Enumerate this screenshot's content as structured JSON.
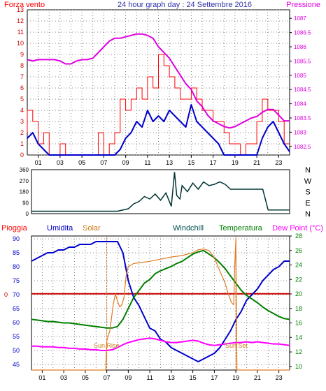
{
  "header": {
    "left_label": "Forza vento",
    "title": "24 hour graph day : 24 Settembre 2016",
    "right_label": "Pressione"
  },
  "colors": {
    "wind_force": "#ff0000",
    "wind_speed": "#0000cc",
    "pressure": "#e000e0",
    "direction": "#003333",
    "rain": "#cc0000",
    "humidity": "#0000cc",
    "solar": "#e07a20",
    "windchill": "#003333",
    "temperature": "#008000",
    "dew_point": "#ff00ff",
    "grid": "#606060"
  },
  "legend_bottom": {
    "rain": "Pioggia",
    "humidity": "Umidita",
    "solar": "Solar",
    "windchill": "Windchill",
    "temperature": "Temperatura",
    "dew_point": "Dew Point (°C)"
  },
  "annotations": {
    "sunrise": "Sun Rise",
    "sunset": "Sun Set"
  },
  "chart_data": [
    {
      "type": "line",
      "name": "wind-pressure",
      "x_ticks": [
        "01",
        "03",
        "05",
        "07",
        "09",
        "11",
        "13",
        "15",
        "17",
        "19",
        "21",
        "23"
      ],
      "ylim_left": [
        0,
        13
      ],
      "y_ticks_left": [
        0,
        1,
        2,
        3,
        4,
        5,
        6,
        7,
        8,
        9,
        10,
        11,
        12,
        13
      ],
      "ylim_right": [
        1082.2,
        1087.3
      ],
      "y_ticks_right": [
        1082.5,
        1083,
        1083.5,
        1084,
        1084.5,
        1085,
        1085.5,
        1086,
        1086.5,
        1087
      ],
      "grid": true,
      "series": [
        {
          "key": "wind_force",
          "axis": "left",
          "x": [
            0,
            0.5,
            1,
            1.5,
            2,
            2.5,
            3,
            3.5,
            4,
            4.5,
            5,
            5.5,
            6,
            6.5,
            7,
            7.5,
            8,
            8.5,
            9,
            9.5,
            10,
            10.5,
            11,
            11.5,
            12,
            12.5,
            13,
            13.5,
            14,
            14.5,
            15,
            15.5,
            16,
            16.5,
            17,
            17.5,
            18,
            18.5,
            19,
            19.5,
            20,
            20.5,
            21,
            21.5,
            22,
            22.5,
            23,
            23.5,
            24
          ],
          "values": [
            2,
            4,
            3,
            1,
            2,
            0,
            0,
            1,
            0,
            0,
            0,
            0,
            0,
            0,
            2,
            0,
            1,
            2,
            5,
            4,
            5,
            6,
            5,
            7,
            6,
            9,
            8,
            7,
            6,
            5,
            5,
            6,
            5,
            4,
            4,
            3,
            3,
            2,
            1,
            1,
            0,
            1,
            1,
            3,
            5,
            4,
            4,
            3,
            1
          ]
        },
        {
          "key": "wind_speed",
          "axis": "left",
          "x": [
            0,
            0.5,
            1,
            1.5,
            2,
            2.5,
            3,
            3.5,
            4,
            4.5,
            5,
            5.5,
            6,
            6.5,
            7,
            7.5,
            8,
            8.5,
            9,
            9.5,
            10,
            10.5,
            11,
            11.5,
            12,
            12.5,
            13,
            13.5,
            14,
            14.5,
            15,
            15.5,
            16,
            16.5,
            17,
            17.5,
            18,
            18.5,
            19,
            19.5,
            20,
            20.5,
            21,
            21.5,
            22,
            22.5,
            23,
            23.5,
            24
          ],
          "values": [
            1.5,
            2,
            1,
            0.5,
            0,
            0,
            0,
            0,
            0,
            0,
            0,
            0,
            0,
            0,
            0,
            0,
            0,
            0.5,
            1.5,
            2,
            3,
            2.5,
            4,
            3,
            3.5,
            3,
            4,
            3.5,
            3,
            2.5,
            4.5,
            3,
            2.5,
            2,
            1.5,
            1,
            0,
            0,
            0,
            0,
            0,
            0,
            0,
            1.5,
            2.5,
            3,
            2,
            1,
            0.3
          ]
        },
        {
          "key": "pressure",
          "axis": "right",
          "x": [
            0,
            0.5,
            1,
            1.5,
            2,
            2.5,
            3,
            3.5,
            4,
            4.5,
            5,
            5.5,
            6,
            6.5,
            7,
            7.5,
            8,
            8.5,
            9,
            9.5,
            10,
            10.5,
            11,
            11.5,
            12,
            12.5,
            13,
            13.5,
            14,
            14.5,
            15,
            15.5,
            16,
            16.5,
            17,
            17.5,
            18,
            18.5,
            19,
            19.5,
            20,
            20.5,
            21,
            21.5,
            22,
            22.5,
            23,
            23.5,
            24
          ],
          "values": [
            1085.55,
            1085.5,
            1085.55,
            1085.55,
            1085.55,
            1085.55,
            1085.5,
            1085.4,
            1085.4,
            1085.5,
            1085.55,
            1085.55,
            1085.6,
            1085.8,
            1086.0,
            1086.2,
            1086.3,
            1086.3,
            1086.35,
            1086.4,
            1086.45,
            1086.45,
            1086.4,
            1086.3,
            1086.0,
            1085.8,
            1085.6,
            1085.3,
            1085.0,
            1084.7,
            1084.5,
            1084.1,
            1083.9,
            1083.6,
            1083.4,
            1083.3,
            1083.2,
            1083.15,
            1083.2,
            1083.3,
            1083.4,
            1083.5,
            1083.55,
            1083.7,
            1083.8,
            1083.8,
            1083.6,
            1083.4,
            1083.4
          ]
        }
      ]
    },
    {
      "type": "line",
      "name": "wind-direction",
      "left_ticks": [
        "360",
        "270",
        "180",
        "90",
        "0"
      ],
      "right_labels": [
        "N",
        "W",
        "S",
        "E",
        "N"
      ],
      "ylim": [
        0,
        360
      ],
      "grid": false,
      "series": [
        {
          "key": "direction",
          "x": [
            0,
            1,
            2,
            3,
            4,
            5,
            6,
            7,
            8,
            9,
            9.5,
            10,
            10.5,
            11,
            11.5,
            12,
            12.5,
            13,
            13.3,
            13.5,
            13.8,
            14,
            14.5,
            15,
            15.5,
            16,
            16.5,
            17,
            17.5,
            18,
            18.5,
            19,
            20,
            21,
            21.5,
            22,
            23,
            24
          ],
          "values": [
            20,
            20,
            20,
            20,
            20,
            20,
            20,
            20,
            20,
            40,
            80,
            100,
            140,
            120,
            160,
            110,
            170,
            60,
            340,
            150,
            120,
            230,
            180,
            250,
            200,
            260,
            230,
            240,
            260,
            240,
            200,
            200,
            200,
            200,
            200,
            30,
            30,
            30
          ]
        }
      ]
    },
    {
      "type": "line",
      "name": "temp-humidity",
      "x_ticks": [
        "01",
        "03",
        "05",
        "07",
        "09",
        "11",
        "13",
        "15",
        "17",
        "19",
        "21",
        "23"
      ],
      "ylim_left": [
        43,
        91
      ],
      "y_ticks_left": [
        45,
        50,
        55,
        60,
        65,
        70,
        75,
        80,
        85,
        90
      ],
      "ylim_right": [
        9.5,
        28
      ],
      "y_ticks_right": [
        10,
        12,
        14,
        16,
        18,
        20,
        22,
        24,
        26,
        28
      ],
      "rain_label": "0",
      "sunrise_hour": 7.0,
      "sunset_hour": 19.0,
      "grid": true,
      "series": [
        {
          "key": "humidity",
          "axis": "left",
          "x": [
            0,
            0.5,
            1,
            1.5,
            2,
            2.5,
            3,
            3.5,
            4,
            4.5,
            5,
            5.5,
            6,
            6.5,
            7,
            7.5,
            8,
            8.5,
            9,
            9.5,
            10,
            10.5,
            11,
            11.5,
            12,
            12.5,
            13,
            13.5,
            14,
            14.5,
            15,
            15.5,
            16,
            16.5,
            17,
            17.5,
            18,
            18.5,
            19,
            19.5,
            20,
            20.5,
            21,
            21.5,
            22,
            22.5,
            23,
            23.5,
            24
          ],
          "values": [
            82,
            83,
            84,
            85,
            85,
            86,
            86,
            87,
            87,
            88,
            88,
            88,
            89,
            89,
            89,
            89,
            89,
            85,
            75,
            69,
            66,
            62,
            58,
            57,
            54,
            53,
            51,
            50,
            49,
            48,
            47,
            46,
            47,
            48,
            49,
            51,
            54,
            57,
            61,
            64,
            68,
            70,
            72,
            75,
            77,
            79,
            80,
            82,
            82
          ]
        },
        {
          "key": "temperature",
          "axis": "right",
          "x": [
            0,
            0.5,
            1,
            1.5,
            2,
            2.5,
            3,
            3.5,
            4,
            4.5,
            5,
            5.5,
            6,
            6.5,
            7,
            7.5,
            8,
            8.5,
            9,
            9.5,
            10,
            10.5,
            11,
            11.5,
            12,
            12.5,
            13,
            13.5,
            14,
            14.5,
            15,
            15.5,
            16,
            16.5,
            17,
            17.5,
            18,
            18.5,
            19,
            19.5,
            20,
            20.5,
            21,
            21.5,
            22,
            22.5,
            23,
            23.5,
            24
          ],
          "values": [
            16.5,
            16.4,
            16.3,
            16.2,
            16.2,
            16.1,
            16.0,
            16.0,
            15.9,
            15.8,
            15.7,
            15.6,
            15.5,
            15.4,
            15.3,
            15.3,
            15.5,
            16.5,
            18.0,
            19.5,
            20.5,
            21.5,
            22.0,
            22.8,
            23.2,
            23.5,
            23.8,
            24.2,
            24.5,
            25.0,
            25.5,
            25.8,
            26.0,
            25.5,
            25.0,
            24.3,
            23.5,
            22.5,
            21.5,
            20.5,
            19.8,
            19.3,
            18.8,
            18.2,
            17.7,
            17.3,
            16.9,
            16.6,
            16.5
          ]
        },
        {
          "key": "dew_point",
          "axis": "right",
          "x": [
            0,
            0.5,
            1,
            1.5,
            2,
            2.5,
            3,
            3.5,
            4,
            4.5,
            5,
            5.5,
            6,
            6.5,
            7,
            7.5,
            8,
            8.5,
            9,
            9.5,
            10,
            10.5,
            11,
            11.5,
            12,
            12.5,
            13,
            13.5,
            14,
            14.5,
            15,
            15.5,
            16,
            16.5,
            17,
            17.5,
            18,
            18.5,
            19,
            19.5,
            20,
            20.5,
            21,
            21.5,
            22,
            22.5,
            23,
            23.5,
            24
          ],
          "values": [
            12.8,
            12.8,
            12.7,
            12.7,
            12.7,
            12.6,
            12.6,
            12.5,
            12.5,
            12.4,
            12.4,
            12.3,
            12.3,
            12.2,
            12.2,
            12.3,
            12.6,
            13.0,
            13.3,
            13.5,
            13.7,
            13.8,
            13.9,
            13.8,
            13.6,
            13.4,
            13.3,
            13.3,
            13.4,
            13.5,
            13.6,
            13.5,
            13.2,
            13.0,
            12.9,
            13.0,
            13.1,
            13.2,
            13.3,
            13.3,
            13.4,
            13.3,
            13.4,
            13.3,
            13.2,
            13.1,
            13.1,
            13.0,
            12.9
          ]
        },
        {
          "key": "solar",
          "axis": "right",
          "x": [
            0,
            1,
            2,
            3,
            4,
            5,
            6,
            6.9,
            7.0,
            7.3,
            7.6,
            7.8,
            8.0,
            8.2,
            8.4,
            8.6,
            8.8,
            9.0,
            9.5,
            10,
            11,
            12,
            13,
            14,
            15,
            15.5,
            16,
            16.5,
            17,
            17.5,
            18,
            18.3,
            18.6,
            18.8,
            18.9,
            19.0,
            19.1,
            20,
            21,
            22,
            23,
            24
          ],
          "values": [
            9.5,
            9.5,
            9.5,
            9.5,
            9.5,
            9.5,
            9.5,
            9.5,
            13.5,
            15.0,
            18.5,
            20.0,
            19.0,
            18.2,
            18.5,
            19.5,
            22.5,
            23.8,
            24.2,
            24.3,
            24.5,
            24.8,
            25.1,
            25.3,
            25.7,
            26.1,
            26.2,
            26.0,
            25.0,
            23.2,
            21.5,
            20.0,
            18.8,
            18.5,
            24.0,
            27.5,
            9.5,
            9.5,
            9.5,
            9.5,
            9.5,
            9.5
          ]
        }
      ]
    }
  ]
}
